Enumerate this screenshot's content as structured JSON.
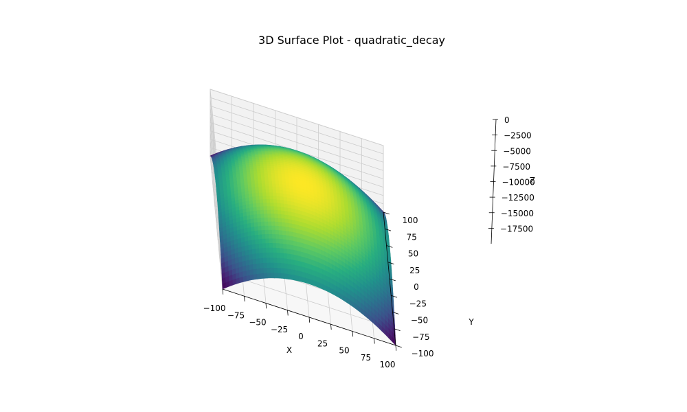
{
  "chart_data": {
    "type": "surface3d",
    "title": "3D Surface Plot - quadratic_decay",
    "xlabel": "X",
    "ylabel": "Y",
    "zlabel": "Z",
    "function": "z = -(x^2 + y^2)",
    "x_range": [
      -100,
      100
    ],
    "y_range": [
      -100,
      100
    ],
    "z_range": [
      -20000,
      0
    ],
    "x_ticks": [
      "−100",
      "−75",
      "−50",
      "−25",
      "0",
      "25",
      "50",
      "75",
      "100"
    ],
    "y_ticks": [
      "−100",
      "−75",
      "−50",
      "−25",
      "0",
      "25",
      "50",
      "75",
      "100"
    ],
    "z_ticks": [
      "−17500",
      "−15000",
      "−12500",
      "−10000",
      "−7500",
      "−5000",
      "−2500",
      "0"
    ],
    "x_tick_values": [
      -100,
      -75,
      -50,
      -25,
      0,
      25,
      50,
      75,
      100
    ],
    "y_tick_values": [
      -100,
      -75,
      -50,
      -25,
      0,
      25,
      50,
      75,
      100
    ],
    "z_tick_values": [
      -17500,
      -15000,
      -12500,
      -10000,
      -7500,
      -5000,
      -2500,
      0
    ],
    "colormap": "viridis",
    "grid": true,
    "pane_color": "#f2f2f2",
    "grid_color": "#cccccc"
  }
}
